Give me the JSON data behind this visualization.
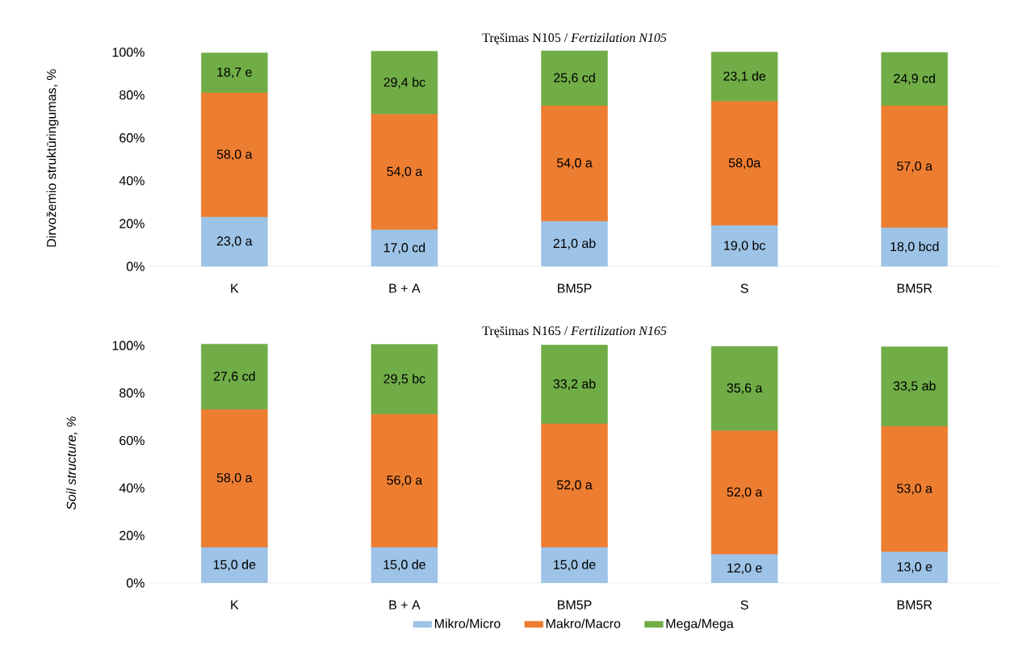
{
  "chart_data": [
    {
      "type": "bar",
      "stacked": true,
      "title": "Tręšimas N105  / *Fertizilation N105*",
      "ylabel": "Dirvožemio struktūringumas, %",
      "categories": [
        "K",
        "B + A",
        "BM5P",
        "S",
        "BM5R"
      ],
      "ylim": [
        0,
        101
      ],
      "yticks": [
        {
          "value": 0,
          "label": "0%"
        },
        {
          "value": 20,
          "label": "20%"
        },
        {
          "value": 40,
          "label": "40%"
        },
        {
          "value": 60,
          "label": "60%"
        },
        {
          "value": 80,
          "label": "80%"
        },
        {
          "value": 100,
          "label": "100%"
        }
      ],
      "series": [
        {
          "color": "#9dc3e6",
          "values": [
            23.0,
            17.0,
            21.0,
            19.0,
            18.0
          ],
          "value_labels": [
            "23,0 a",
            "17,0 cd",
            "21,0 ab",
            "19,0 bc",
            "18,0 bcd"
          ]
        },
        {
          "color": "#ed7d31",
          "values": [
            58.0,
            54.0,
            54.0,
            58.0,
            57.0
          ],
          "value_labels": [
            "58,0 a",
            "54,0 a",
            "54,0 a",
            "58,0a",
            "57,0 a"
          ]
        },
        {
          "color": "#70ad47",
          "values": [
            18.7,
            29.4,
            25.6,
            23.1,
            24.9
          ],
          "value_labels": [
            "18,7 e",
            "29,4 bc",
            "25,6 cd",
            "23,1 de",
            "24,9 cd"
          ]
        }
      ]
    },
    {
      "type": "bar",
      "stacked": true,
      "title": "Tręšimas N165 / *Fertilization N165*",
      "ylabel": "Soil structure, %",
      "legend": "bottom",
      "categories": [
        "K",
        "B + A",
        "BM5P",
        "S",
        "BM5R"
      ],
      "ylim": [
        0,
        101
      ],
      "yticks": [
        {
          "value": 0,
          "label": "0%"
        },
        {
          "value": 20,
          "label": "20%"
        },
        {
          "value": 40,
          "label": "40%"
        },
        {
          "value": 60,
          "label": "60%"
        },
        {
          "value": 80,
          "label": "80%"
        },
        {
          "value": 100,
          "label": "100%"
        }
      ],
      "series": [
        {
          "name": "Mikro/Micro",
          "color": "#9dc3e6",
          "values": [
            15.0,
            15.0,
            15.0,
            12.0,
            13.0
          ],
          "value_labels": [
            "15,0 de",
            "15,0 de",
            "15,0 de",
            "12,0 e",
            "13,0 e"
          ]
        },
        {
          "name": "Makro/Macro",
          "color": "#ed7d31",
          "values": [
            58.0,
            56.0,
            52.0,
            52.0,
            53.0
          ],
          "value_labels": [
            "58,0 a",
            "56,0 a",
            "52,0 a",
            "52,0 a",
            "53,0 a"
          ]
        },
        {
          "name": "Mega/Mega",
          "color": "#70ad47",
          "values": [
            27.6,
            29.5,
            33.2,
            35.6,
            33.5
          ],
          "value_labels": [
            "27,6 cd",
            "29,5 bc",
            "33,2 ab",
            "35,6 a",
            "33,5 ab"
          ]
        }
      ]
    }
  ]
}
